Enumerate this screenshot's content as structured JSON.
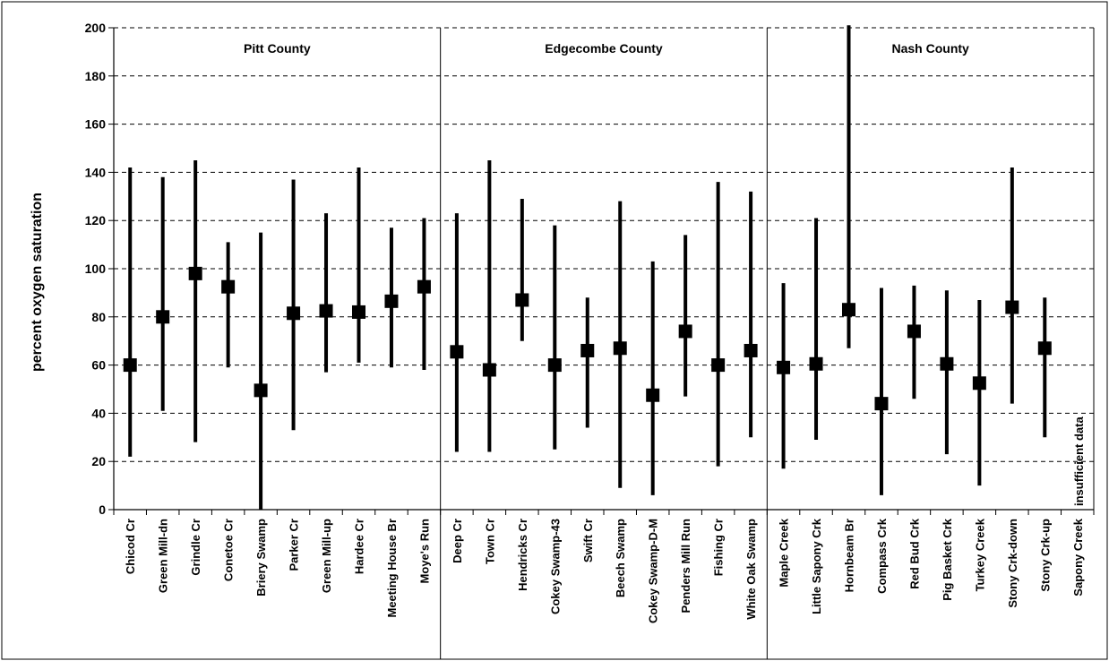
{
  "chart_data": {
    "type": "scatter",
    "title": "",
    "xlabel": "",
    "ylabel": "percent oxygen saturation",
    "ylim": [
      0,
      200
    ],
    "yticks": [
      0,
      20,
      40,
      60,
      80,
      100,
      120,
      140,
      160,
      180,
      200
    ],
    "grid": "horizontal dashed",
    "groups": [
      {
        "label": "Pitt County",
        "start": 0,
        "end": 9
      },
      {
        "label": "Edgecombe County",
        "start": 10,
        "end": 19
      },
      {
        "label": "Nash County",
        "start": 20,
        "end": 29
      }
    ],
    "categories": [
      "Chicod Cr",
      "Green Mill-dn",
      "Grindle Cr",
      "Conetoe Cr",
      "Briery Swamp",
      "Parker Cr",
      "Green Mill-up",
      "Hardee Cr",
      "Meeting House Br",
      "Moye's Run",
      "Deep Cr",
      "Town Cr",
      "Hendricks Cr",
      "Cokey Swamp-43",
      "Swift Cr",
      "Beech Swamp",
      "Cokey Swamp-D-M",
      "Penders Mill Run",
      "Fishing Cr",
      "White Oak Swamp",
      "Maple Creek",
      "Little Sapony Crk",
      "Hornbeam Br",
      "Compass Crk",
      "Red Bud Crk",
      "Pig Basket Crk",
      "Turkey Creek",
      "Stony Crk-down",
      "Stony Crk-up",
      "Sapony Creek"
    ],
    "series": [
      {
        "mean": [
          60,
          80,
          98,
          92.5,
          49.5,
          81.5,
          82.5,
          82,
          86.5,
          92.5,
          65.5,
          58,
          87,
          60,
          66,
          67,
          47.5,
          74,
          60,
          66,
          59,
          60.5,
          83,
          44,
          74,
          60.5,
          52.5,
          84,
          67,
          null
        ],
        "min": [
          22,
          41,
          28,
          59,
          0,
          33,
          57,
          61,
          59,
          58,
          24,
          24,
          70,
          25,
          34,
          9,
          6,
          47,
          18,
          30,
          17,
          29,
          67,
          6,
          46,
          23,
          10,
          44,
          30,
          null
        ],
        "max": [
          142,
          138,
          145,
          111,
          115,
          137,
          123,
          142,
          117,
          121,
          123,
          145,
          129,
          118,
          88,
          128,
          103,
          114,
          136,
          132,
          94,
          121,
          201,
          92,
          93,
          91,
          87,
          142,
          88,
          null
        ]
      }
    ],
    "annotations": [
      {
        "text": "insufficient data",
        "category": "Sapony Creek"
      }
    ]
  }
}
